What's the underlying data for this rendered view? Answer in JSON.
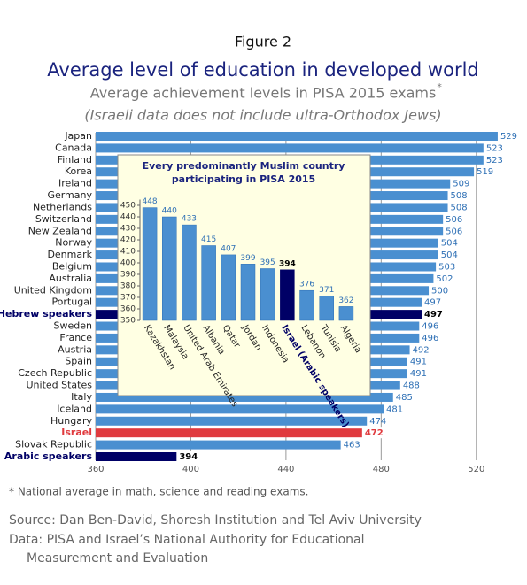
{
  "chart_data": [
    {
      "type": "hbar",
      "figure_label": "Figure 2",
      "title": "Average level of education in developed world",
      "subtitle": "Average achievement levels in PISA 2015 exams",
      "subtitle_mark": "*",
      "note": "(Israeli data does not include ultra-Orthodox Jews)",
      "categories": [
        "Japan",
        "Canada",
        "Finland",
        "Korea",
        "Ireland",
        "Germany",
        "Netherlands",
        "Switzerland",
        "New Zealand",
        "Norway",
        "Denmark",
        "Belgium",
        "Australia",
        "United Kingdom",
        "Portugal",
        "Hebrew speakers",
        "Sweden",
        "France",
        "Austria",
        "Spain",
        "Czech Republic",
        "United States",
        "Italy",
        "Iceland",
        "Hungary",
        "Israel",
        "Slovak Republic",
        "Arabic speakers"
      ],
      "values": [
        529,
        523,
        523,
        519,
        509,
        508,
        508,
        506,
        506,
        504,
        504,
        503,
        502,
        500,
        497,
        497,
        496,
        496,
        492,
        491,
        491,
        488,
        485,
        481,
        474,
        472,
        463,
        394
      ],
      "color": "#4a8fd0",
      "colors": [
        "#4a8fd0",
        "#4a8fd0",
        "#4a8fd0",
        "#4a8fd0",
        "#4a8fd0",
        "#4a8fd0",
        "#4a8fd0",
        "#4a8fd0",
        "#4a8fd0",
        "#4a8fd0",
        "#4a8fd0",
        "#4a8fd0",
        "#4a8fd0",
        "#4a8fd0",
        "#4a8fd0",
        "#000066",
        "#4a8fd0",
        "#4a8fd0",
        "#4a8fd0",
        "#4a8fd0",
        "#4a8fd0",
        "#4a8fd0",
        "#4a8fd0",
        "#4a8fd0",
        "#4a8fd0",
        "#e03a3e",
        "#4a8fd0",
        "#000066"
      ],
      "xlim": [
        360,
        532
      ],
      "xticks": [
        360,
        400,
        440,
        480,
        520
      ],
      "grid": true,
      "footnote": "* National average in math, science and reading exams.",
      "source": "Source: Dan Ben-David, Shoresh Institution and Tel Aviv University",
      "data_source": [
        "Data: PISA and Israel’s National Authority for Educational",
        "Measurement and Evaluation"
      ]
    },
    {
      "type": "bar",
      "title": [
        "Every predominantly Muslim country",
        "participating in PISA 2015"
      ],
      "categories": [
        "Kazakhstan",
        "Malaysia",
        "United Arab Emirates",
        "Albania",
        "Qatar",
        "Jordan",
        "Indonesia",
        "Israel (Arabic speakers)",
        "Lebanon",
        "Tunisia",
        "Algeria"
      ],
      "values": [
        448,
        440,
        433,
        415,
        407,
        399,
        395,
        394,
        376,
        371,
        362
      ],
      "color": "#4a8fd0",
      "colors": [
        "#4a8fd0",
        "#4a8fd0",
        "#4a8fd0",
        "#4a8fd0",
        "#4a8fd0",
        "#4a8fd0",
        "#4a8fd0",
        "#000066",
        "#4a8fd0",
        "#4a8fd0",
        "#4a8fd0"
      ],
      "ylim": [
        350,
        455
      ],
      "yticks": [
        350,
        360,
        370,
        380,
        390,
        400,
        410,
        420,
        430,
        440,
        450
      ]
    }
  ]
}
